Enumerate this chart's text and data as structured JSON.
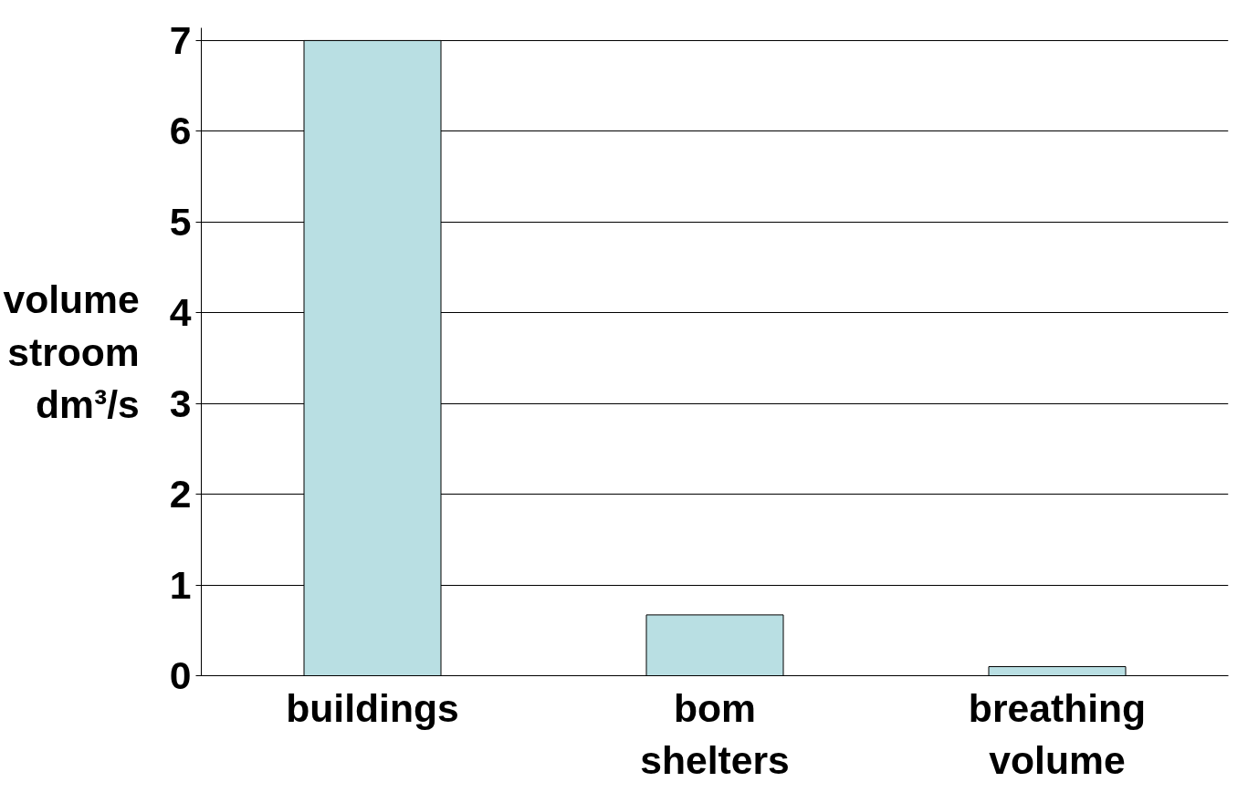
{
  "chart_data": {
    "type": "bar",
    "ylabel": "volume\nstroom\ndm³/s",
    "categories": [
      "buildings",
      "bom\nshelters",
      "breathing\nvolume"
    ],
    "values": [
      7.0,
      0.67,
      0.1
    ],
    "color": "#b9dfe3",
    "ylim": [
      0,
      7
    ],
    "yticks": [
      0,
      1,
      2,
      3,
      4,
      5,
      6,
      7
    ],
    "grid": "y"
  }
}
